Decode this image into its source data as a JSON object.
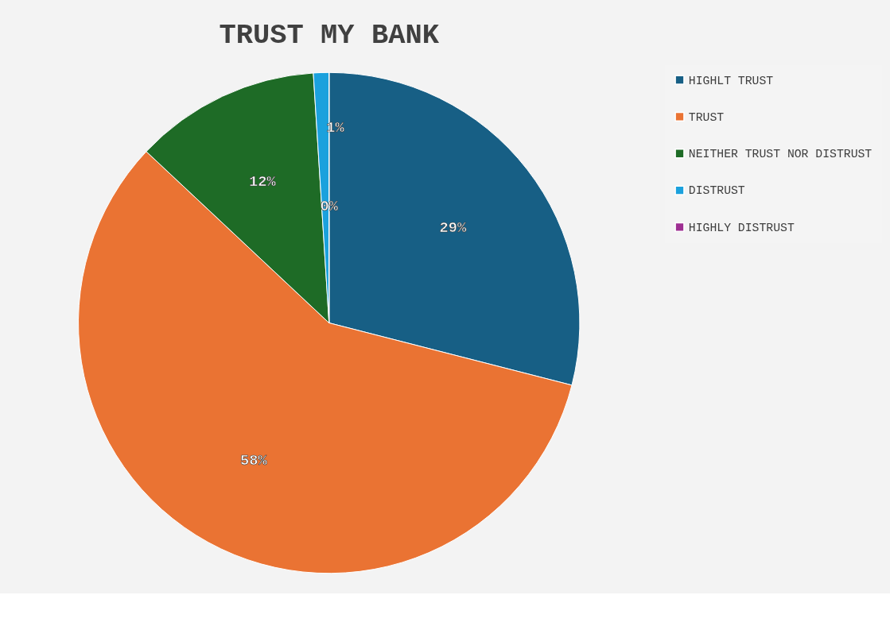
{
  "chart_data": {
    "type": "pie",
    "title": "TRUST MY BANK",
    "categories": [
      "HIGHLT TRUST",
      "TRUST",
      "NEITHER TRUST NOR DISTRUST",
      "DISTRUST",
      "HIGHLY DISTRUST"
    ],
    "values": [
      29,
      58,
      12,
      1,
      0
    ],
    "colors": [
      "#175f85",
      "#ea7333",
      "#1e6b26",
      "#1ba1dd",
      "#9e2f92"
    ],
    "value_labels": [
      "29%",
      "58%",
      "12%",
      "1%",
      "0%"
    ],
    "legend": "right"
  }
}
